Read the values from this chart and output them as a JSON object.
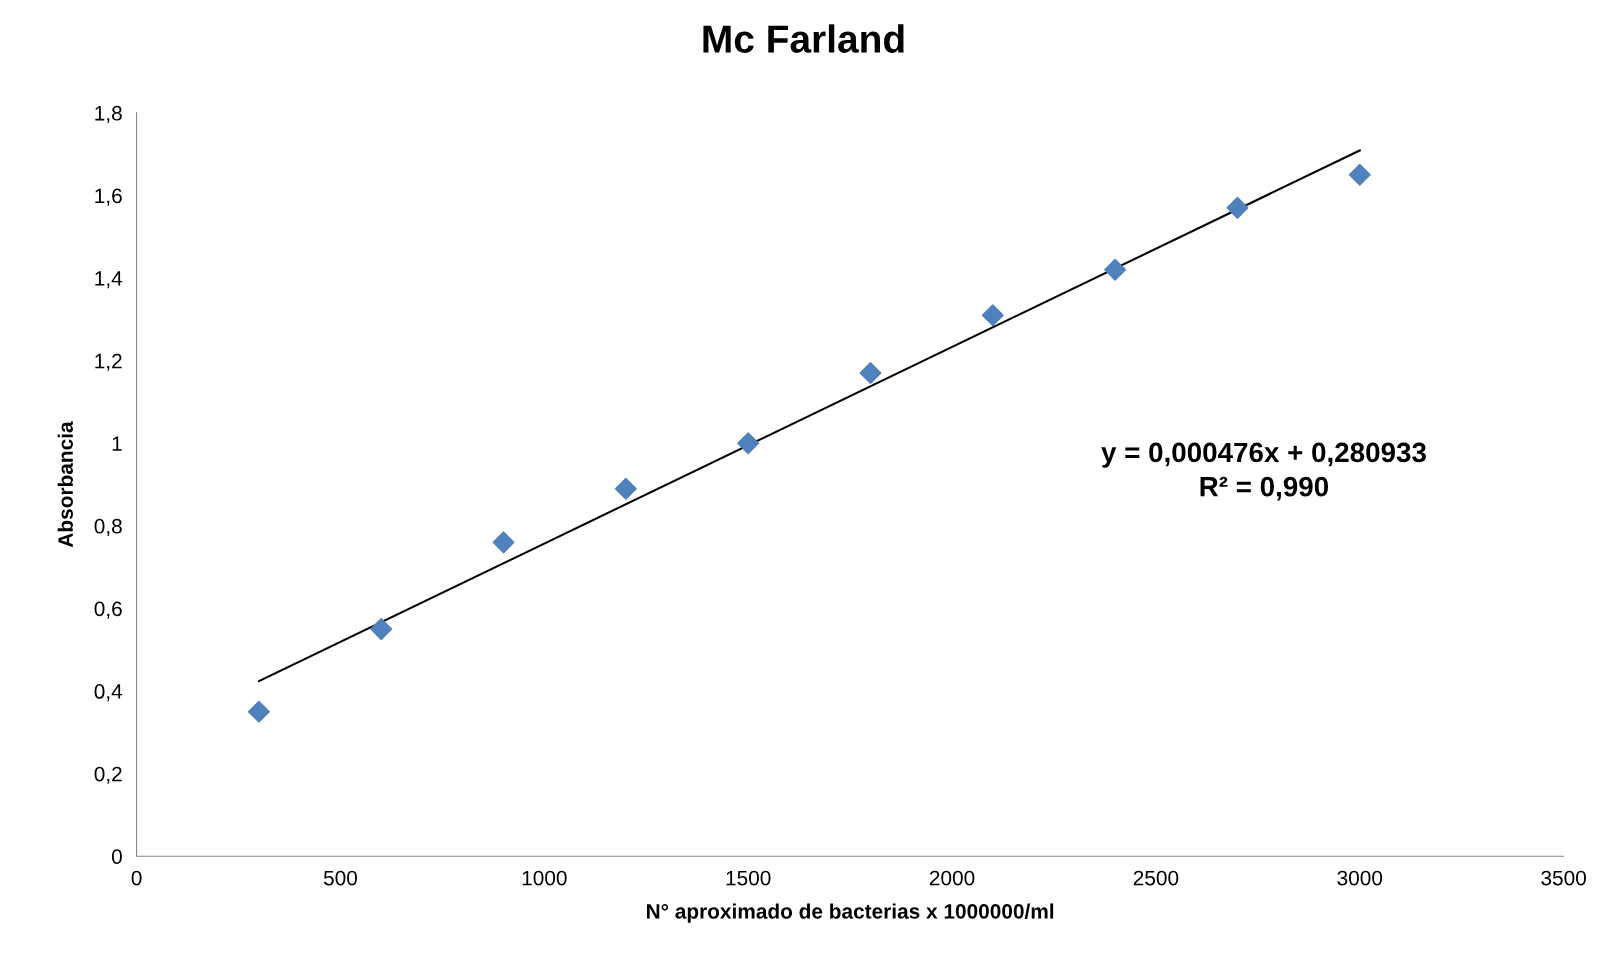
{
  "chart_data": {
    "type": "scatter",
    "title": "Mc Farland",
    "xlabel": "N° aproximado de bacterias x 1000000/ml",
    "ylabel": "Absorbancia",
    "x": [
      300,
      600,
      900,
      1200,
      1500,
      1800,
      2100,
      2400,
      2700,
      3000
    ],
    "series": [
      {
        "color": "#4f81bd",
        "marker": "diamond",
        "values": [
          0.35,
          0.55,
          0.76,
          0.89,
          1.0,
          1.17,
          1.31,
          1.42,
          1.57,
          1.65
        ]
      },
      {
        "type": "line",
        "color": "#000000",
        "marker": "none",
        "line_style": "solid",
        "x": [
          300,
          3000
        ],
        "values": [
          0.424,
          1.709
        ]
      }
    ],
    "xlim": [
      0,
      3500
    ],
    "xticks": [
      0,
      500,
      1000,
      1500,
      2000,
      2500,
      3000,
      3500
    ],
    "ylim": [
      0,
      1.8
    ],
    "yticks": [
      0,
      {
        "value": 0.2,
        "label": "0,2"
      },
      {
        "value": 0.4,
        "label": "0,4"
      },
      {
        "value": 0.6,
        "label": "0,6"
      },
      {
        "value": 0.8,
        "label": "0,8"
      },
      1,
      {
        "value": 1.2,
        "label": "1,2"
      },
      {
        "value": 1.4,
        "label": "1,4"
      },
      {
        "value": 1.6,
        "label": "1,6"
      },
      {
        "value": 1.8,
        "label": "1,8"
      }
    ],
    "grid": false,
    "legend": false,
    "annotations": [
      "y = 0,000476x + 0,280933",
      "R² = 0,990"
    ]
  }
}
